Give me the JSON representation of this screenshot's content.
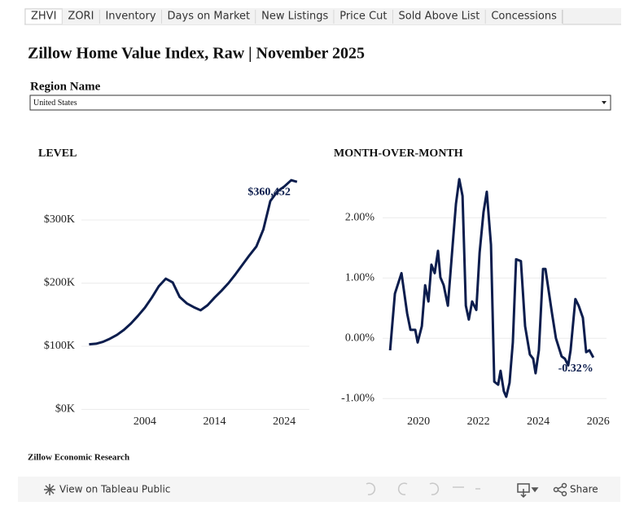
{
  "tabs": [
    {
      "label": "ZHVI",
      "selected": true
    },
    {
      "label": "ZORI",
      "selected": false
    },
    {
      "label": "Inventory",
      "selected": false
    },
    {
      "label": "Days on Market",
      "selected": false
    },
    {
      "label": "New Listings",
      "selected": false
    },
    {
      "label": "Price Cut",
      "selected": false
    },
    {
      "label": "Sold Above List",
      "selected": false
    },
    {
      "label": "Concessions",
      "selected": false
    }
  ],
  "title": "Zillow Home Value Index, Raw | November 2025",
  "filter": {
    "label": "Region Name",
    "value": "United States"
  },
  "footer": "Zillow Economic Research",
  "toolbar": {
    "view": "View on Tableau Public",
    "share": "Share"
  },
  "chart_data": [
    {
      "type": "line",
      "title": "LEVEL",
      "color": "#0c1d4d",
      "grid": true,
      "x": [
        1996,
        1997,
        1998,
        1999,
        2000,
        2001,
        2002,
        2003,
        2004,
        2005,
        2006,
        2007,
        2008,
        2009,
        2010,
        2011,
        2012,
        2013,
        2014,
        2015,
        2016,
        2017,
        2018,
        2019,
        2020,
        2021,
        2022,
        2023,
        2024,
        2025,
        2025.83
      ],
      "values": [
        103000,
        104000,
        107000,
        112000,
        118000,
        126000,
        136000,
        148000,
        161000,
        177000,
        195000,
        207000,
        201000,
        178000,
        168000,
        162000,
        157000,
        165000,
        177000,
        188000,
        200000,
        214000,
        229000,
        244000,
        258000,
        285000,
        330000,
        345000,
        353000,
        363000,
        360452
      ],
      "value_labels": [
        null,
        null,
        null,
        null,
        null,
        null,
        null,
        null,
        null,
        null,
        null,
        null,
        null,
        null,
        null,
        null,
        null,
        null,
        null,
        null,
        null,
        null,
        null,
        null,
        null,
        null,
        null,
        null,
        null,
        null,
        "$360,452"
      ],
      "xlim": [
        1994.9,
        2027.6
      ],
      "xticks": [
        2004,
        2014,
        2024
      ],
      "ylim": [
        0,
        400000
      ],
      "yticks": [
        {
          "value": 0,
          "label": "$0K"
        },
        {
          "value": 100000,
          "label": "$100K"
        },
        {
          "value": 200000,
          "label": "$200K"
        },
        {
          "value": 300000,
          "label": "$300K"
        }
      ]
    },
    {
      "type": "line",
      "title": "MONTH-OVER-MONTH",
      "color": "#0c1d4d",
      "grid": true,
      "x": [
        2019.05,
        2019.21,
        2019.43,
        2019.62,
        2019.73,
        2019.89,
        2019.97,
        2020.11,
        2020.22,
        2020.33,
        2020.43,
        2020.54,
        2020.65,
        2020.73,
        2020.84,
        2020.98,
        2021.14,
        2021.25,
        2021.36,
        2021.47,
        2021.58,
        2021.68,
        2021.79,
        2021.93,
        2022.04,
        2022.17,
        2022.28,
        2022.42,
        2022.53,
        2022.66,
        2022.74,
        2022.85,
        2022.93,
        2023.04,
        2023.15,
        2023.26,
        2023.42,
        2023.56,
        2023.72,
        2023.83,
        2023.91,
        2024.02,
        2024.16,
        2024.24,
        2024.46,
        2024.59,
        2024.78,
        2024.89,
        2025.0,
        2025.08,
        2025.24,
        2025.35,
        2025.49,
        2025.6,
        2025.71,
        2025.84
      ],
      "values": [
        -0.2,
        0.74,
        1.08,
        0.41,
        0.14,
        0.14,
        -0.07,
        0.2,
        0.88,
        0.61,
        1.22,
        1.08,
        1.45,
        1.01,
        0.88,
        0.54,
        1.55,
        2.23,
        2.64,
        2.36,
        0.54,
        0.31,
        0.61,
        0.47,
        1.42,
        2.09,
        2.43,
        1.55,
        -0.72,
        -0.77,
        -0.54,
        -0.88,
        -0.97,
        -0.74,
        -0.07,
        1.31,
        1.28,
        0.2,
        -0.27,
        -0.34,
        -0.58,
        -0.2,
        1.15,
        1.15,
        0.41,
        0.0,
        -0.3,
        -0.34,
        -0.45,
        -0.2,
        0.65,
        0.54,
        0.34,
        -0.23,
        -0.2,
        -0.32
      ],
      "value_labels": [
        null,
        null,
        null,
        null,
        null,
        null,
        null,
        null,
        null,
        null,
        null,
        null,
        null,
        null,
        null,
        null,
        null,
        null,
        null,
        null,
        null,
        null,
        null,
        null,
        null,
        null,
        null,
        null,
        null,
        null,
        null,
        null,
        null,
        null,
        null,
        null,
        null,
        null,
        null,
        null,
        null,
        null,
        null,
        null,
        null,
        null,
        null,
        null,
        null,
        null,
        null,
        null,
        null,
        null,
        null,
        "-0.32%"
      ],
      "xlim": [
        2018.8,
        2026.28
      ],
      "xticks": [
        2020,
        2022,
        2024,
        2026
      ],
      "ylim": [
        -1.2,
        2.8
      ],
      "yticks": [
        {
          "value": -1,
          "label": "-1.00%"
        },
        {
          "value": 0,
          "label": "0.00%"
        },
        {
          "value": 1,
          "label": "1.00%"
        },
        {
          "value": 2,
          "label": "2.00%"
        }
      ]
    }
  ]
}
